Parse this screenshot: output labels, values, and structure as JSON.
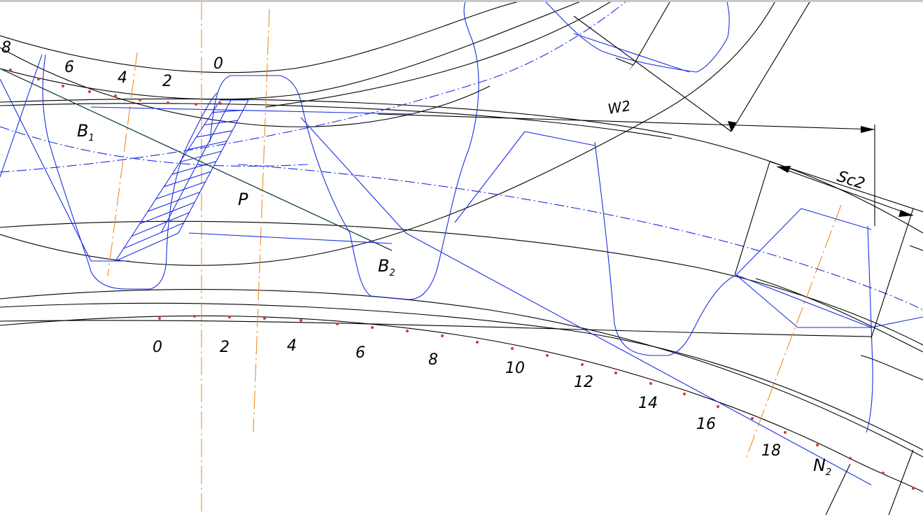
{
  "colors": {
    "profile_blue": "#1a2fe0",
    "axis_orange": "#f08c1e",
    "outline_black": "#000000",
    "point_red": "#d83a2a",
    "action_line": "#173f3f"
  },
  "labels": {
    "pitch_point": "P",
    "contact_start": "B",
    "contact_start_sub": "1",
    "contact_end": "B",
    "contact_end_sub": "2",
    "tangent_point": "N",
    "tangent_point_sub": "2",
    "chord_dimension": "W2",
    "thickness_dimension": "Sc2"
  },
  "top_scale": [
    "8",
    "6",
    "4",
    "2",
    "0"
  ],
  "bottom_scale": [
    "0",
    "2",
    "4",
    "6",
    "8",
    "10",
    "12",
    "14",
    "16",
    "18"
  ]
}
